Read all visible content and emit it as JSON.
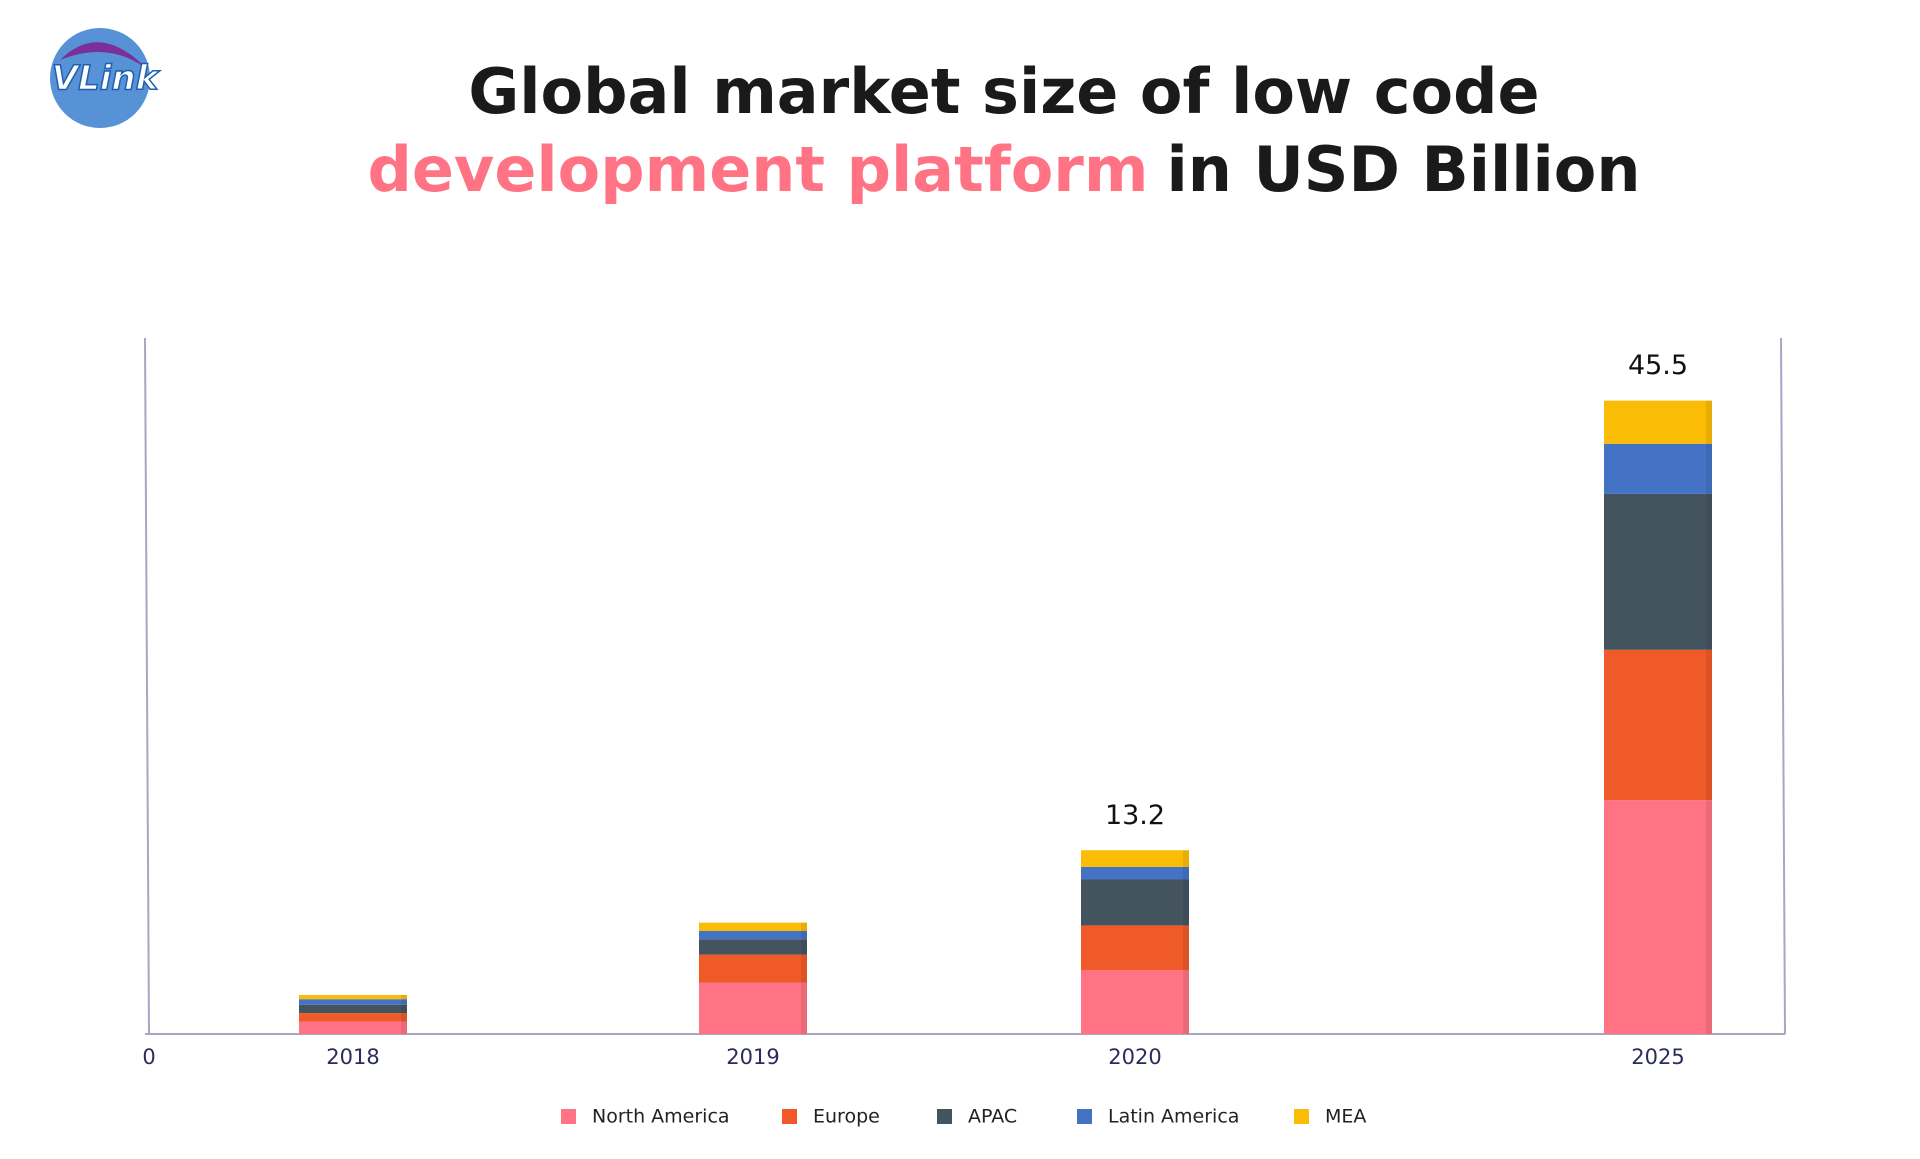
{
  "logo": "VLink",
  "chart_data": {
    "type": "stacked_bar",
    "title": {
      "line1": "Global market size of low code",
      "highlight": "development platform",
      "line2": "in USD Billion"
    },
    "categories": [
      "2018",
      "2019",
      "2020",
      "2025"
    ],
    "series": [
      {
        "name": "North America",
        "color": "#ff7385",
        "values": [
          0.9,
          3.7,
          4.6,
          16.8
        ]
      },
      {
        "name": "Europe",
        "color": "#f05a28",
        "values": [
          0.6,
          2.0,
          3.2,
          10.8
        ]
      },
      {
        "name": "APAC",
        "color": "#44545f",
        "values": [
          0.6,
          1.1,
          3.3,
          11.2
        ]
      },
      {
        "name": "Latin America",
        "color": "#4472c4",
        "values": [
          0.4,
          0.6,
          0.9,
          3.6
        ]
      },
      {
        "name": "MEA",
        "color": "#fbbc05",
        "values": [
          0.3,
          0.6,
          1.2,
          3.1
        ]
      }
    ],
    "totals": [
      null,
      null,
      13.2,
      45.5
    ],
    "ylim": [
      0,
      50
    ],
    "yticks": [
      0
    ],
    "legend": "bottom"
  }
}
